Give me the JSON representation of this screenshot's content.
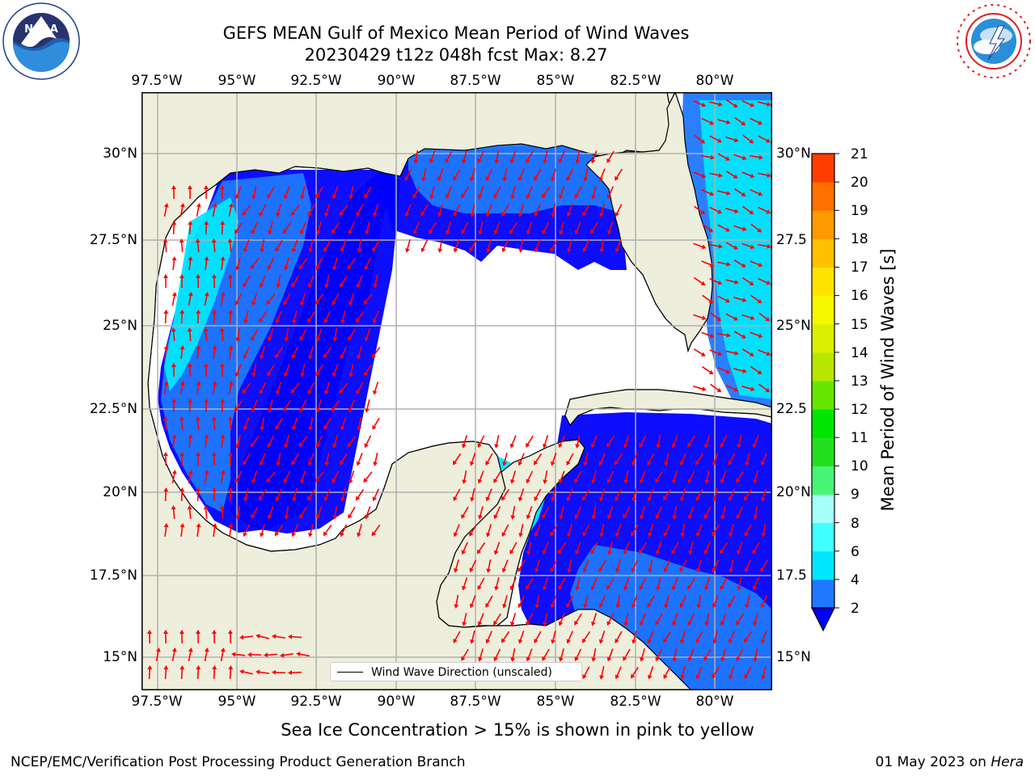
{
  "header": {
    "title_line1": "GEFS MEAN Gulf of Mexico Mean Period of Wind Waves",
    "title_line2": "20230429 t12z 048h fcst   Max: 8.27"
  },
  "logos": {
    "noaa": {
      "text": "NOAA",
      "ring_text": "NATIONAL OCEANIC AND ATMOSPHERIC ADMINISTRATION · U.S. DEPARTMENT OF COMMERCE"
    },
    "nws": {
      "ring_text": "NATIONAL WEATHER SERVICE"
    }
  },
  "map": {
    "lon_ticks": [
      "97.5°W",
      "95°W",
      "92.5°W",
      "90°W",
      "87.5°W",
      "85°W",
      "82.5°W",
      "80°W"
    ],
    "lat_ticks": [
      "30°N",
      "27.5°N",
      "25°N",
      "22.5°N",
      "20°N",
      "17.5°N",
      "15°N"
    ],
    "lat_ticks_right": [
      "30°N",
      "27.5",
      "25°N",
      "22.5",
      "20°N",
      "17.5",
      "15°N"
    ],
    "lon_range": [
      -98,
      -78
    ],
    "lat_range": [
      14,
      32
    ],
    "colors": {
      "land": "#eeeedc",
      "gulf_no_data": "#ffffff",
      "arrow": "#ff0000",
      "coast": "#000000",
      "grid": "#b0b0b0"
    },
    "legend_label": "Wind Wave Direction (unscaled)"
  },
  "colorbar": {
    "label": "Mean Period of Wind Waves [s]",
    "ticks": [
      "2",
      "4",
      "6",
      "8",
      "9",
      "10",
      "11",
      "12",
      "13",
      "14",
      "15",
      "16",
      "17",
      "18",
      "19",
      "20",
      "21"
    ],
    "colors": [
      "#1f78ff",
      "#00e6ff",
      "#40ffff",
      "#a6fffa",
      "#48f574",
      "#22e01f",
      "#00e600",
      "#66e600",
      "#b7e600",
      "#d9f000",
      "#f7f700",
      "#ffe400",
      "#ffc000",
      "#ff9a00",
      "#ff7000",
      "#ff3d00",
      "#ff0000"
    ],
    "extend": "min",
    "extend_color": "#0000ff"
  },
  "subtitle": "Sea Ice Concentration > 15% is shown in pink to yellow",
  "footer": {
    "left": "NCEP/EMC/Verification Post Processing Product Generation Branch",
    "right_prefix": "01 May 2023 on ",
    "right_host": "Hera"
  }
}
